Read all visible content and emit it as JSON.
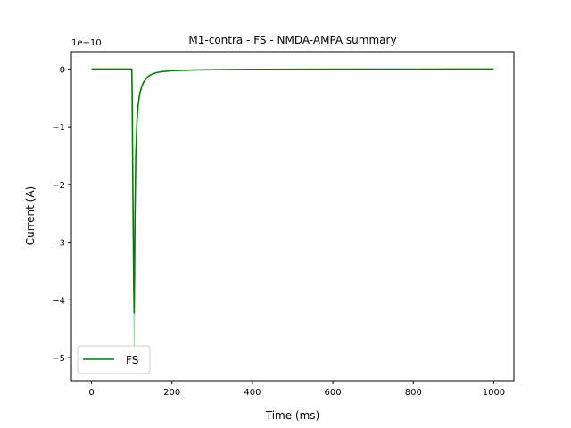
{
  "chart_data": {
    "type": "line",
    "title": "M1-contra - FS - NMDA-AMPA summary",
    "xlabel": "Time (ms)",
    "ylabel": "Current (A)",
    "y_offset_label": "1e−10",
    "xlim": [
      -50,
      1050
    ],
    "ylim": [
      -5.4,
      0.3
    ],
    "xticks": [
      0,
      200,
      400,
      600,
      800,
      1000
    ],
    "xtick_labels": [
      "0",
      "200",
      "400",
      "600",
      "800",
      "1000"
    ],
    "yticks": [
      0,
      -1,
      -2,
      -3,
      -4,
      -5
    ],
    "ytick_labels": [
      "0",
      "−1",
      "−2",
      "−3",
      "−4",
      "−5"
    ],
    "grid": false,
    "legend_position": "lower-left",
    "series": [
      {
        "name": "FS",
        "color": "#008000",
        "x": [
          0,
          50,
          100,
          101,
          103,
          105,
          106,
          107,
          108,
          110,
          113,
          116,
          120,
          125,
          130,
          140,
          150,
          160,
          175,
          200,
          250,
          300,
          400,
          500,
          600,
          700,
          800,
          900,
          1000
        ],
        "y": [
          0,
          0,
          0,
          -0.4,
          -2.2,
          -3.8,
          -4.22,
          -3.6,
          -2.6,
          -1.5,
          -0.9,
          -0.62,
          -0.42,
          -0.3,
          -0.22,
          -0.13,
          -0.09,
          -0.065,
          -0.045,
          -0.03,
          -0.018,
          -0.012,
          -0.006,
          -0.004,
          -0.002,
          -0.001,
          -0.001,
          0,
          0
        ]
      },
      {
        "name": "",
        "color": "#a8d4a8",
        "x": [
          105,
          105.5,
          106,
          106.5,
          107
        ],
        "y": [
          -4.0,
          -4.5,
          -4.8,
          -4.5,
          -3.9
        ]
      }
    ]
  }
}
